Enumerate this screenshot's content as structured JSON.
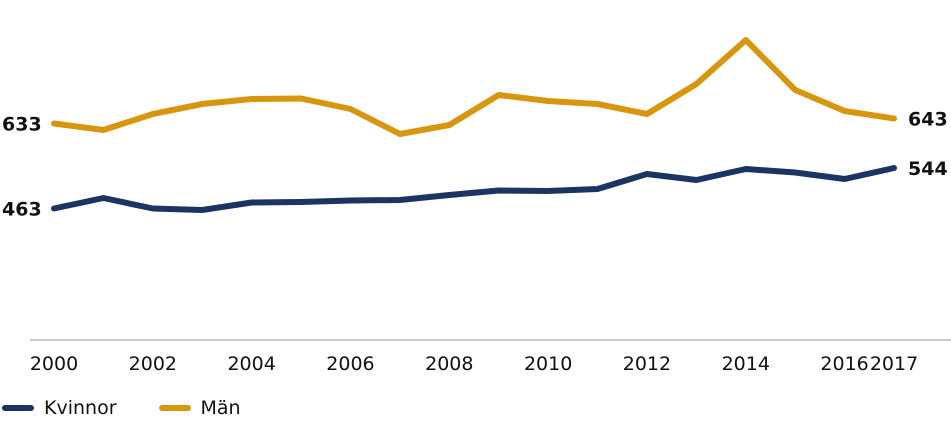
{
  "chart_data": {
    "type": "line",
    "x": [
      2000,
      2001,
      2002,
      2003,
      2004,
      2005,
      2006,
      2007,
      2008,
      2009,
      2010,
      2011,
      2012,
      2013,
      2014,
      2015,
      2016,
      2017
    ],
    "x_tick_labels": [
      "2000",
      "2002",
      "2004",
      "2006",
      "2008",
      "2010",
      "2012",
      "2014",
      "2016",
      "2017"
    ],
    "series": [
      {
        "name": "Kvinnor",
        "color": "#1b3461",
        "values": [
          463,
          484,
          463,
          460,
          475,
          476,
          479,
          480,
          490,
          499,
          498,
          502,
          532,
          520,
          542,
          535,
          522,
          544
        ],
        "start_label": "463",
        "end_label": "544"
      },
      {
        "name": "Män",
        "color": "#d8960f",
        "values": [
          633,
          620,
          652,
          672,
          682,
          683,
          662,
          612,
          630,
          690,
          678,
          672,
          652,
          712,
          800,
          700,
          658,
          643
        ],
        "start_label": "633",
        "end_label": "643"
      }
    ],
    "ylim": [
      200,
      820
    ],
    "grid": false,
    "legend_position": "bottom-left"
  }
}
